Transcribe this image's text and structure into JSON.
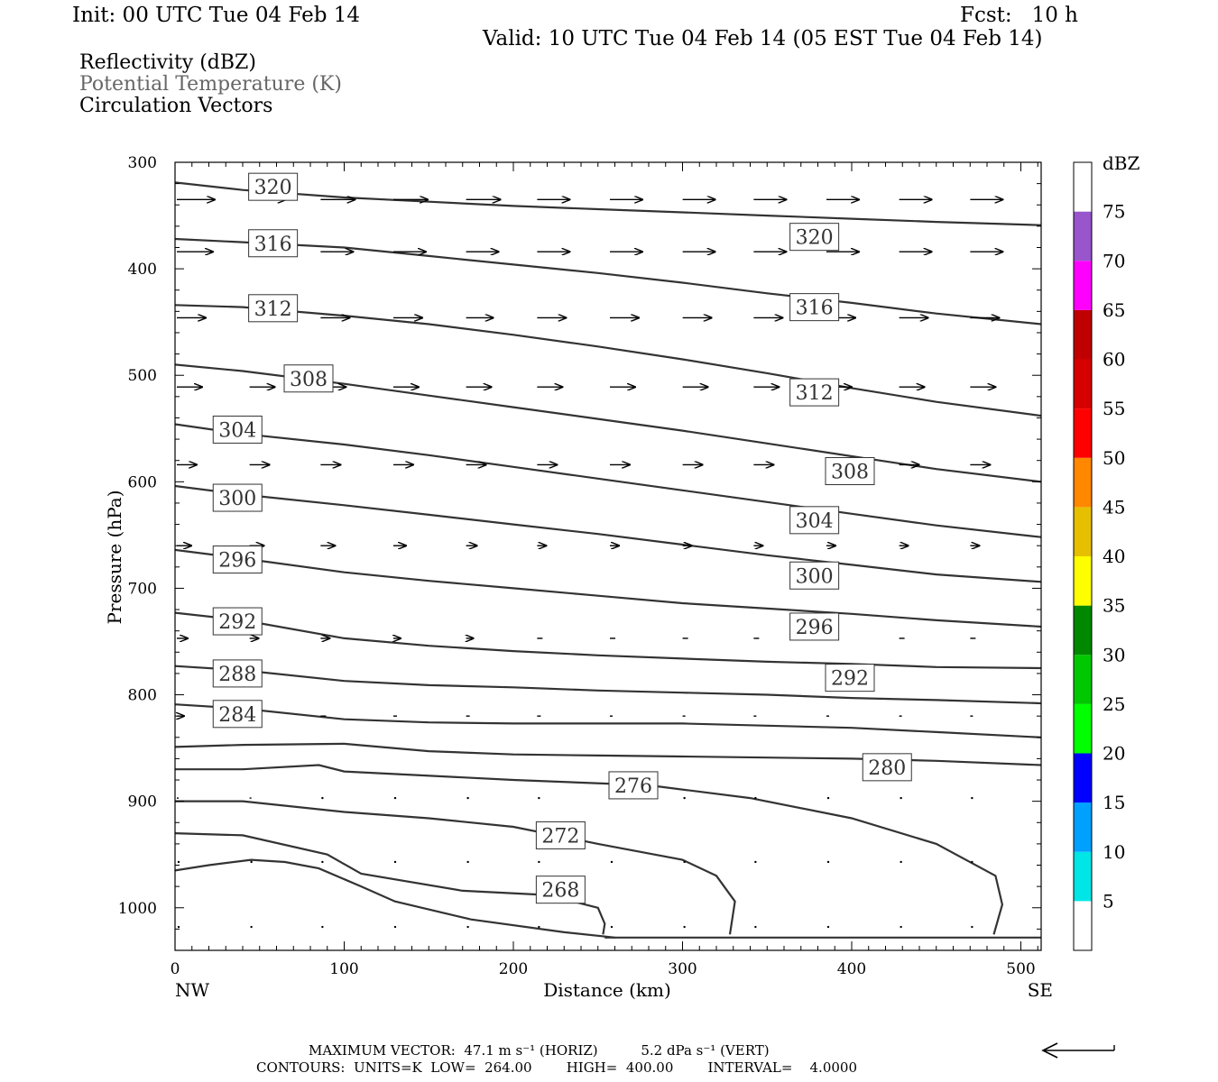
{
  "header": {
    "init": "Init: 00 UTC Tue 04 Feb 14",
    "fcst": "Fcst:   10 h",
    "valid": "Valid: 10 UTC Tue 04 Feb 14 (05 EST Tue 04 Feb 14)"
  },
  "fields": {
    "reflectivity": "Reflectivity (dBZ)",
    "theta": "Potential Temperature (K)",
    "vectors": "Circulation Vectors"
  },
  "footer": {
    "max_vector": "MAXIMUM VECTOR:  47.1 m s⁻¹ (HORIZ)          5.2 dPa s⁻¹ (VERT)",
    "contours": "CONTOURS:  UNITS=K  LOW=  264.00        HIGH=  400.00        INTERVAL=    4.0000"
  },
  "colors": {
    "contour": "#333333",
    "text_grey": "#666666",
    "colorbar": [
      "#ffffff",
      "#00e5e5",
      "#00a0ff",
      "#0000ff",
      "#00ff00",
      "#00c800",
      "#008800",
      "#ffff00",
      "#e6c000",
      "#ff8800",
      "#ff0000",
      "#d60000",
      "#c00000",
      "#ff00ff",
      "#9955cc",
      "#ffffff"
    ]
  },
  "chart_data": {
    "type": "cross-section",
    "xlabel": "Distance (km)",
    "ylabel": "Pressure (hPa)",
    "xlim": [
      0,
      512
    ],
    "ylim": [
      300,
      1040
    ],
    "y_scale": "linear, inverted",
    "x_ticks": [
      0,
      100,
      200,
      300,
      400,
      500
    ],
    "y_ticks": [
      300,
      400,
      500,
      600,
      700,
      800,
      900,
      1000
    ],
    "x_end_labels": {
      "left": "NW",
      "right": "SE"
    },
    "colorbar": {
      "label": "dBZ",
      "ticks": [
        5,
        10,
        15,
        20,
        25,
        30,
        35,
        40,
        45,
        50,
        55,
        60,
        65,
        70,
        75
      ]
    },
    "ground_pressure": 1028,
    "contours": [
      {
        "value": 320,
        "points": [
          [
            0,
            319
          ],
          [
            40,
            326
          ],
          [
            100,
            333
          ],
          [
            150,
            337
          ],
          [
            200,
            341
          ],
          [
            250,
            344
          ],
          [
            300,
            347
          ],
          [
            350,
            350
          ],
          [
            400,
            353
          ],
          [
            450,
            356
          ],
          [
            512,
            359
          ]
        ]
      },
      {
        "value": 316,
        "points": [
          [
            0,
            372
          ],
          [
            40,
            375
          ],
          [
            100,
            380
          ],
          [
            150,
            388
          ],
          [
            200,
            396
          ],
          [
            250,
            404
          ],
          [
            300,
            413
          ],
          [
            350,
            423
          ],
          [
            400,
            432
          ],
          [
            450,
            442
          ],
          [
            512,
            452
          ]
        ]
      },
      {
        "value": 312,
        "points": [
          [
            0,
            434
          ],
          [
            40,
            436
          ],
          [
            100,
            444
          ],
          [
            150,
            452
          ],
          [
            200,
            462
          ],
          [
            250,
            473
          ],
          [
            300,
            485
          ],
          [
            350,
            498
          ],
          [
            400,
            512
          ],
          [
            450,
            525
          ],
          [
            512,
            538
          ]
        ]
      },
      {
        "value": 308,
        "points": [
          [
            0,
            490
          ],
          [
            40,
            496
          ],
          [
            100,
            508
          ],
          [
            150,
            519
          ],
          [
            200,
            530
          ],
          [
            250,
            541
          ],
          [
            300,
            552
          ],
          [
            350,
            564
          ],
          [
            400,
            576
          ],
          [
            450,
            588
          ],
          [
            512,
            600
          ]
        ]
      },
      {
        "value": 304,
        "points": [
          [
            0,
            546
          ],
          [
            40,
            555
          ],
          [
            100,
            565
          ],
          [
            150,
            575
          ],
          [
            200,
            586
          ],
          [
            250,
            597
          ],
          [
            300,
            608
          ],
          [
            350,
            619
          ],
          [
            400,
            630
          ],
          [
            450,
            641
          ],
          [
            512,
            652
          ]
        ]
      },
      {
        "value": 300,
        "points": [
          [
            0,
            604
          ],
          [
            40,
            612
          ],
          [
            100,
            622
          ],
          [
            150,
            631
          ],
          [
            200,
            640
          ],
          [
            250,
            649
          ],
          [
            300,
            659
          ],
          [
            350,
            669
          ],
          [
            400,
            678
          ],
          [
            450,
            687
          ],
          [
            512,
            694
          ]
        ]
      },
      {
        "value": 296,
        "points": [
          [
            0,
            664
          ],
          [
            40,
            672
          ],
          [
            100,
            685
          ],
          [
            150,
            693
          ],
          [
            200,
            700
          ],
          [
            250,
            707
          ],
          [
            300,
            714
          ],
          [
            350,
            719
          ],
          [
            400,
            724
          ],
          [
            450,
            730
          ],
          [
            512,
            736
          ]
        ]
      },
      {
        "value": 292,
        "points": [
          [
            0,
            723
          ],
          [
            40,
            730
          ],
          [
            100,
            747
          ],
          [
            150,
            754
          ],
          [
            200,
            759
          ],
          [
            250,
            763
          ],
          [
            300,
            766
          ],
          [
            350,
            769
          ],
          [
            400,
            771
          ],
          [
            450,
            774
          ],
          [
            512,
            775
          ]
        ]
      },
      {
        "value": 288,
        "points": [
          [
            0,
            773
          ],
          [
            40,
            777
          ],
          [
            100,
            787
          ],
          [
            150,
            791
          ],
          [
            200,
            793
          ],
          [
            250,
            796
          ],
          [
            300,
            798
          ],
          [
            350,
            800
          ],
          [
            400,
            803
          ],
          [
            450,
            805
          ],
          [
            512,
            808
          ]
        ]
      },
      {
        "value": 284,
        "points": [
          [
            0,
            809
          ],
          [
            40,
            813
          ],
          [
            100,
            823
          ],
          [
            150,
            826
          ],
          [
            200,
            827
          ],
          [
            250,
            827
          ],
          [
            300,
            827
          ],
          [
            350,
            829
          ],
          [
            400,
            831
          ],
          [
            450,
            835
          ],
          [
            512,
            840
          ]
        ]
      },
      {
        "value": 280,
        "points": [
          [
            0,
            849
          ],
          [
            40,
            847
          ],
          [
            100,
            846
          ],
          [
            150,
            853
          ],
          [
            200,
            856
          ],
          [
            250,
            857
          ],
          [
            300,
            858
          ],
          [
            350,
            859
          ],
          [
            400,
            860
          ],
          [
            450,
            862
          ],
          [
            512,
            866
          ]
        ]
      },
      {
        "value": 276,
        "points": [
          [
            0,
            870
          ],
          [
            40,
            870
          ],
          [
            85,
            866
          ],
          [
            100,
            872
          ],
          [
            200,
            880
          ],
          [
            280,
            885
          ],
          [
            340,
            897
          ],
          [
            400,
            916
          ],
          [
            450,
            940
          ],
          [
            485,
            970
          ],
          [
            489,
            997
          ],
          [
            484,
            1025
          ]
        ]
      },
      {
        "value": 272,
        "points": [
          [
            0,
            900
          ],
          [
            40,
            900
          ],
          [
            100,
            910
          ],
          [
            150,
            916
          ],
          [
            200,
            924
          ],
          [
            250,
            940
          ],
          [
            300,
            955
          ],
          [
            320,
            970
          ],
          [
            331,
            994
          ],
          [
            328,
            1025
          ]
        ]
      },
      {
        "value": 268,
        "points": [
          [
            0,
            930
          ],
          [
            40,
            932
          ],
          [
            90,
            950
          ],
          [
            110,
            968
          ],
          [
            170,
            984
          ],
          [
            220,
            988
          ],
          [
            250,
            1000
          ],
          [
            254,
            1015
          ],
          [
            253,
            1025
          ]
        ]
      },
      {
        "value": 264,
        "points": [
          [
            0,
            965
          ],
          [
            20,
            960
          ],
          [
            45,
            955
          ],
          [
            65,
            957
          ],
          [
            85,
            963
          ],
          [
            110,
            980
          ],
          [
            130,
            994
          ],
          [
            175,
            1011
          ],
          [
            230,
            1023
          ],
          [
            260,
            1028
          ]
        ]
      }
    ],
    "contour_labels": [
      {
        "text": "320",
        "x": 43,
        "p": 323
      },
      {
        "text": "316",
        "x": 43,
        "p": 376
      },
      {
        "text": "312",
        "x": 43,
        "p": 437
      },
      {
        "text": "308",
        "x": 64,
        "p": 503
      },
      {
        "text": "304",
        "x": 22,
        "p": 551
      },
      {
        "text": "300",
        "x": 22,
        "p": 615
      },
      {
        "text": "296",
        "x": 22,
        "p": 673
      },
      {
        "text": "292",
        "x": 22,
        "p": 731
      },
      {
        "text": "288",
        "x": 22,
        "p": 780
      },
      {
        "text": "284",
        "x": 22,
        "p": 818
      },
      {
        "text": "320",
        "x": 363,
        "p": 370
      },
      {
        "text": "316",
        "x": 363,
        "p": 436
      },
      {
        "text": "312",
        "x": 363,
        "p": 516
      },
      {
        "text": "308",
        "x": 384,
        "p": 590
      },
      {
        "text": "304",
        "x": 363,
        "p": 636
      },
      {
        "text": "300",
        "x": 363,
        "p": 688
      },
      {
        "text": "296",
        "x": 363,
        "p": 736
      },
      {
        "text": "292",
        "x": 384,
        "p": 784
      },
      {
        "text": "280",
        "x": 406,
        "p": 868
      },
      {
        "text": "276",
        "x": 256,
        "p": 885
      },
      {
        "text": "272",
        "x": 213,
        "p": 932
      },
      {
        "text": "268",
        "x": 213,
        "p": 983
      }
    ],
    "vectors": {
      "x": [
        0,
        43,
        85,
        128,
        171,
        213,
        256,
        299,
        341,
        384,
        427,
        469
      ],
      "rows": [
        {
          "p": 335,
          "len": [
            42,
            40,
            38,
            38,
            38,
            36,
            36,
            36,
            36,
            36,
            36,
            36
          ]
        },
        {
          "p": 384,
          "len": [
            40,
            38,
            36,
            36,
            36,
            36,
            36,
            36,
            36,
            36,
            36,
            36
          ]
        },
        {
          "p": 446,
          "len": [
            32,
            30,
            32,
            32,
            30,
            32,
            32,
            32,
            32,
            32,
            32,
            32
          ]
        },
        {
          "p": 511,
          "len": [
            28,
            28,
            28,
            28,
            28,
            28,
            28,
            28,
            28,
            28,
            28,
            28
          ]
        },
        {
          "p": 584,
          "len": [
            22,
            22,
            22,
            22,
            22,
            22,
            22,
            22,
            22,
            22,
            22,
            22
          ]
        },
        {
          "p": 660,
          "len": [
            16,
            16,
            16,
            14,
            12,
            10,
            10,
            10,
            10,
            10,
            10,
            10
          ]
        },
        {
          "p": 747,
          "len": [
            12,
            10,
            10,
            8,
            8,
            6,
            6,
            6,
            6,
            6,
            6,
            6
          ]
        },
        {
          "p": 820,
          "len": [
            8,
            8,
            6,
            4,
            4,
            4,
            3,
            3,
            3,
            3,
            3,
            3
          ]
        },
        {
          "p": 897,
          "len": [
            2,
            2,
            1,
            1,
            1,
            1,
            1,
            1,
            1,
            1,
            1,
            1
          ]
        },
        {
          "p": 957,
          "len": [
            1,
            1,
            1,
            1,
            1,
            1,
            1,
            1,
            1,
            1,
            1,
            1
          ]
        },
        {
          "p": 1018,
          "len": [
            1,
            1,
            1,
            1,
            1,
            1,
            1,
            1,
            1,
            1,
            1,
            1
          ]
        }
      ]
    }
  }
}
